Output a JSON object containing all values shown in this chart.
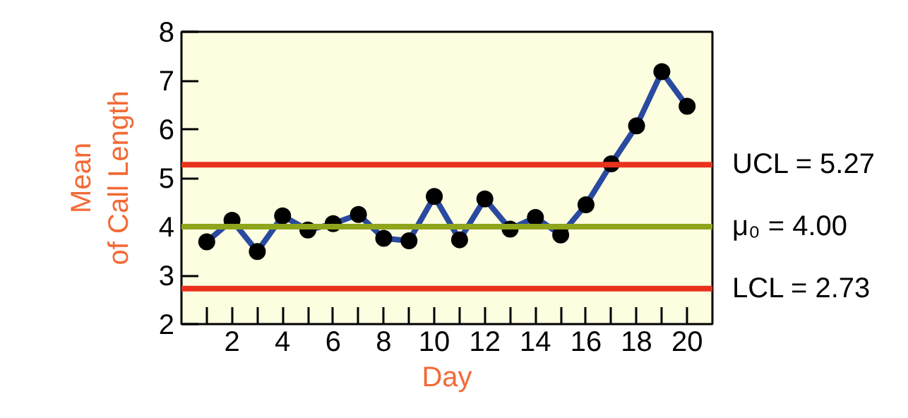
{
  "chart_data": {
    "type": "line",
    "xlabel": "Day",
    "ylabel": "Mean\nof Call Length",
    "x": [
      1,
      2,
      3,
      4,
      5,
      6,
      7,
      8,
      9,
      10,
      11,
      12,
      13,
      14,
      15,
      16,
      17,
      18,
      19,
      20
    ],
    "series": [
      {
        "color": "#2a4aa0",
        "values": [
          3.69,
          4.13,
          3.49,
          4.22,
          3.93,
          4.06,
          4.25,
          3.76,
          3.71,
          4.62,
          3.73,
          4.57,
          3.95,
          4.19,
          3.83,
          4.45,
          5.29,
          6.07,
          7.18,
          6.47
        ]
      }
    ],
    "marker": "circle",
    "line_style": "solid",
    "grid": false,
    "xlim": [
      0,
      21
    ],
    "ylim": [
      2,
      8
    ],
    "xticks": [
      {
        "value": 1,
        "label": null
      },
      2,
      {
        "value": 3,
        "label": null
      },
      4,
      {
        "value": 5,
        "label": null
      },
      6,
      {
        "value": 7,
        "label": null
      },
      8,
      {
        "value": 9,
        "label": null
      },
      10,
      {
        "value": 11,
        "label": null
      },
      12,
      {
        "value": 13,
        "label": null
      },
      14,
      {
        "value": 15,
        "label": null
      },
      16,
      {
        "value": 17,
        "label": null
      },
      18,
      {
        "value": 19,
        "label": null
      },
      20
    ],
    "yticks": [
      2,
      3,
      4,
      5,
      6,
      7,
      8
    ],
    "ref_lines": [
      {
        "axis": "y",
        "value": 5.27,
        "label": "UCL = 5.27",
        "color": "#e8321e"
      },
      {
        "axis": "y",
        "value": 4.0,
        "label": "μ₀ = 4.00",
        "color": "#8fa51c"
      },
      {
        "axis": "y",
        "value": 2.73,
        "label": "LCL = 2.73",
        "color": "#e8321e"
      }
    ]
  }
}
